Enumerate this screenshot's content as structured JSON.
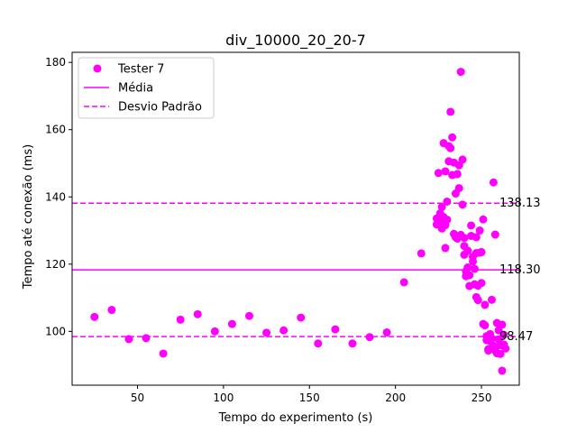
{
  "chart_data": {
    "type": "scatter",
    "title": "div_10000_20_20-7",
    "xlabel": "Tempo do experimento (s)",
    "ylabel": "Tempo até conexão (ms)",
    "xlim": [
      12,
      272
    ],
    "ylim": [
      84,
      183
    ],
    "xticks": [
      50,
      100,
      150,
      200,
      250
    ],
    "yticks": [
      100,
      120,
      140,
      160,
      180
    ],
    "grid": false,
    "legend_position": "top-left",
    "color": "#ff00ff",
    "series": [
      {
        "name": "Tester 7",
        "points": [
          [
            25,
            104.3
          ],
          [
            35,
            106.4
          ],
          [
            45,
            97.7
          ],
          [
            55,
            98.0
          ],
          [
            65,
            93.4
          ],
          [
            75,
            103.5
          ],
          [
            85,
            105.1
          ],
          [
            95,
            100.0
          ],
          [
            105,
            102.2
          ],
          [
            115,
            104.6
          ],
          [
            125,
            99.6
          ],
          [
            135,
            100.3
          ],
          [
            145,
            104.1
          ],
          [
            155,
            96.4
          ],
          [
            165,
            100.6
          ],
          [
            175,
            96.4
          ],
          [
            185,
            98.3
          ],
          [
            195,
            99.7
          ],
          [
            205,
            114.6
          ],
          [
            215,
            123.2
          ],
          [
            224,
            133.6
          ],
          [
            224,
            131.8
          ],
          [
            225,
            147.1
          ],
          [
            226,
            135.1
          ],
          [
            226,
            134.1
          ],
          [
            227,
            132.2
          ],
          [
            227,
            130.6
          ],
          [
            227,
            137.0
          ],
          [
            228,
            156.0
          ],
          [
            228,
            134.0
          ],
          [
            229,
            147.6
          ],
          [
            229,
            131.6
          ],
          [
            229,
            124.8
          ],
          [
            230,
            138.6
          ],
          [
            230,
            133.2
          ],
          [
            231,
            155.1
          ],
          [
            231,
            150.6
          ],
          [
            232,
            165.3
          ],
          [
            232,
            154.5
          ],
          [
            233,
            157.7
          ],
          [
            233,
            146.5
          ],
          [
            234,
            150.2
          ],
          [
            234,
            129.0
          ],
          [
            235,
            141.0
          ],
          [
            235,
            128.0
          ],
          [
            236,
            127.6
          ],
          [
            236,
            146.8
          ],
          [
            237,
            149.4
          ],
          [
            237,
            142.6
          ],
          [
            238,
            177.2
          ],
          [
            238,
            128.7
          ],
          [
            238,
            128.3
          ],
          [
            239,
            151.1
          ],
          [
            239,
            137.7
          ],
          [
            240,
            127.8
          ],
          [
            240,
            125.4
          ],
          [
            240,
            122.8
          ],
          [
            241,
            117.9
          ],
          [
            241,
            116.4
          ],
          [
            242,
            124.0
          ],
          [
            242,
            119.0
          ],
          [
            243,
            116.7
          ],
          [
            243,
            113.5
          ],
          [
            244,
            131.5
          ],
          [
            244,
            128.4
          ],
          [
            245,
            122.2
          ],
          [
            245,
            120.8
          ],
          [
            246,
            118.6
          ],
          [
            246,
            114.0
          ],
          [
            247,
            128.0
          ],
          [
            247,
            123.3
          ],
          [
            247,
            110.2
          ],
          [
            248,
            109.3
          ],
          [
            248,
            113.6
          ],
          [
            249,
            130.0
          ],
          [
            249,
            123.4
          ],
          [
            250,
            123.6
          ],
          [
            250,
            114.4
          ],
          [
            251,
            133.3
          ],
          [
            251,
            102.2
          ],
          [
            252,
            107.9
          ],
          [
            252,
            101.8
          ],
          [
            253,
            98.6
          ],
          [
            253,
            97.4
          ],
          [
            254,
            94.7
          ],
          [
            254,
            94.3
          ],
          [
            255,
            99.2
          ],
          [
            255,
            97.1
          ],
          [
            256,
            97.9
          ],
          [
            256,
            109.4
          ],
          [
            257,
            144.3
          ],
          [
            257,
            95.7
          ],
          [
            258,
            128.8
          ],
          [
            258,
            94.3
          ],
          [
            259,
            102.5
          ],
          [
            259,
            93.5
          ],
          [
            260,
            100.3
          ],
          [
            260,
            97.6
          ],
          [
            261,
            95.9
          ],
          [
            261,
            93.3
          ],
          [
            262,
            102.0
          ],
          [
            262,
            88.3
          ],
          [
            263,
            99.0
          ],
          [
            263,
            96.1
          ],
          [
            264,
            94.9
          ]
        ]
      }
    ],
    "lines": [
      {
        "name": "Média",
        "style": "solid",
        "y": 118.3,
        "label": "118.30"
      },
      {
        "name": "Desvio Padrão",
        "style": "dashed",
        "y": 138.13,
        "label": "138.13"
      },
      {
        "name": "",
        "style": "dashed",
        "y": 98.47,
        "label": "98.47"
      }
    ],
    "legend": [
      {
        "label": "Tester 7",
        "kind": "marker"
      },
      {
        "label": "Média",
        "kind": "solid"
      },
      {
        "label": "Desvio Padrão",
        "kind": "dashed"
      }
    ]
  }
}
